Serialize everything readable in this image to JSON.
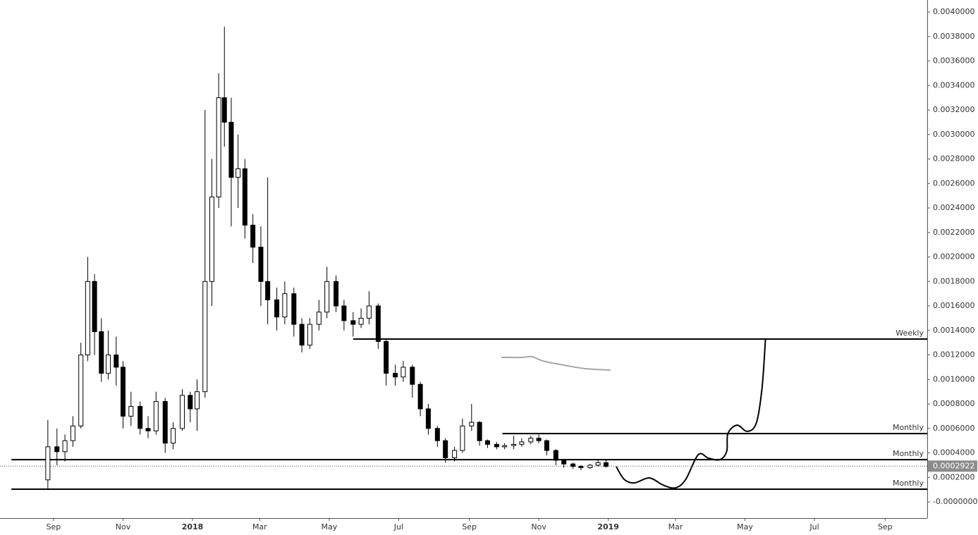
{
  "chart_data": {
    "type": "candlestick",
    "x": [
      42,
      50,
      57,
      64,
      71,
      77,
      83,
      89,
      95,
      102,
      108,
      115,
      123,
      130,
      137,
      145,
      152,
      160,
      167,
      173,
      180,
      186,
      192,
      197,
      203,
      209,
      215,
      222,
      229,
      235,
      243,
      250,
      258,
      265,
      272,
      280,
      287,
      295,
      302,
      310,
      317,
      324,
      332,
      339,
      347,
      354,
      362,
      369,
      376,
      384,
      391,
      399,
      406,
      414,
      421,
      428,
      436,
      443,
      451,
      458,
      466,
      473,
      480,
      488,
      495,
      503,
      510,
      518,
      525,
      532
    ],
    "open": [
      0.00018,
      0.00045,
      0.00041,
      0.0005,
      0.00062,
      0.0012,
      0.0018,
      0.00139,
      0.00105,
      0.0012,
      0.0011,
      0.0007,
      0.00078,
      0.0006,
      0.00058,
      0.00082,
      0.00048,
      0.0006,
      0.00087,
      0.00076,
      0.0009,
      0.0018,
      0.00249,
      0.0033,
      0.0031,
      0.00265,
      0.00272,
      0.00226,
      0.00208,
      0.0018,
      0.00165,
      0.00151,
      0.0017,
      0.00145,
      0.00128,
      0.00145,
      0.00155,
      0.0018,
      0.0016,
      0.00148,
      0.00145,
      0.0015,
      0.0016,
      0.00131,
      0.00105,
      0.00102,
      0.0011,
      0.00096,
      0.00076,
      0.0006,
      0.0005,
      0.00036,
      0.00042,
      0.00062,
      0.00065,
      0.0005,
      0.00047,
      0.00045,
      0.00046,
      0.00047,
      0.00049,
      0.00052,
      0.0005,
      0.00042,
      0.00034,
      0.00031,
      0.00029,
      0.00028,
      0.0003,
      0.00032
    ],
    "high": [
      0.00067,
      0.0006,
      0.00055,
      0.0007,
      0.0013,
      0.002,
      0.00186,
      0.0015,
      0.0014,
      0.00135,
      0.00115,
      0.0009,
      0.00082,
      0.0007,
      0.0009,
      0.00085,
      0.00065,
      0.00092,
      0.0009,
      0.001,
      0.0032,
      0.0028,
      0.0035,
      0.00388,
      0.0033,
      0.003,
      0.0028,
      0.00235,
      0.00225,
      0.00265,
      0.00175,
      0.0018,
      0.00175,
      0.0015,
      0.0015,
      0.00165,
      0.00192,
      0.00185,
      0.00165,
      0.00155,
      0.00158,
      0.00172,
      0.00162,
      0.00133,
      0.00112,
      0.00115,
      0.00112,
      0.00098,
      0.0008,
      0.00062,
      0.00052,
      0.00045,
      0.00068,
      0.0008,
      0.00066,
      0.00051,
      0.00049,
      0.00048,
      0.00054,
      0.00052,
      0.00054,
      0.00055,
      0.00051,
      0.00043,
      0.00035,
      0.00032,
      0.0003,
      0.00031,
      0.00035,
      0.00034
    ],
    "low": [
      0.0001,
      0.0003,
      0.00033,
      0.00045,
      0.0006,
      0.00115,
      0.0012,
      0.00098,
      0.001,
      0.00095,
      0.0006,
      0.00062,
      0.00055,
      0.00052,
      0.00055,
      0.0004,
      0.00043,
      0.00058,
      0.00065,
      0.00058,
      0.00085,
      0.0016,
      0.0024,
      0.0029,
      0.00225,
      0.0024,
      0.00215,
      0.00195,
      0.0016,
      0.00145,
      0.0014,
      0.00145,
      0.00135,
      0.00122,
      0.00125,
      0.0014,
      0.0015,
      0.00155,
      0.0014,
      0.00135,
      0.00142,
      0.00145,
      0.00125,
      0.00095,
      0.00095,
      0.00098,
      0.00085,
      0.0007,
      0.00055,
      0.00045,
      0.00032,
      0.00033,
      0.0004,
      0.00058,
      0.00046,
      0.00044,
      0.00043,
      0.00043,
      0.00043,
      0.00045,
      0.00047,
      0.00048,
      0.00038,
      0.0003,
      0.00028,
      0.00027,
      0.00026,
      0.00027,
      0.00029,
      0.00028
    ],
    "close": [
      0.00045,
      0.00041,
      0.0005,
      0.00062,
      0.0012,
      0.0018,
      0.00139,
      0.00105,
      0.0012,
      0.0011,
      0.0007,
      0.00078,
      0.0006,
      0.00058,
      0.00082,
      0.00048,
      0.0006,
      0.00087,
      0.00076,
      0.0009,
      0.0018,
      0.00249,
      0.0033,
      0.0031,
      0.00265,
      0.00272,
      0.00226,
      0.00208,
      0.0018,
      0.00165,
      0.00151,
      0.0017,
      0.00145,
      0.00128,
      0.00145,
      0.00155,
      0.0018,
      0.0016,
      0.00148,
      0.00145,
      0.0015,
      0.0016,
      0.00131,
      0.00105,
      0.00102,
      0.0011,
      0.00096,
      0.00076,
      0.0006,
      0.0005,
      0.00036,
      0.00042,
      0.00062,
      0.00065,
      0.0005,
      0.00047,
      0.00045,
      0.00046,
      0.00047,
      0.00049,
      0.00052,
      0.0005,
      0.00042,
      0.00034,
      0.00031,
      0.00029,
      0.00028,
      0.0003,
      0.00032,
      0.00029
    ],
    "up_color": "#ffffff",
    "down_color": "#000000",
    "line_color": "#000000",
    "xlim": [
      0,
      814
    ],
    "ylim": [
      -0.000132,
      0.004098
    ],
    "xticks": [
      {
        "value": 47,
        "label": "Sep"
      },
      {
        "value": 108,
        "label": "Nov"
      },
      {
        "value": 169,
        "label": "2018",
        "bold": true
      },
      {
        "value": 228,
        "label": "Mar"
      },
      {
        "value": 289,
        "label": "May"
      },
      {
        "value": 350,
        "label": "Jul"
      },
      {
        "value": 412,
        "label": "Sep"
      },
      {
        "value": 473,
        "label": "Nov"
      },
      {
        "value": 534,
        "label": "2019",
        "bold": true
      },
      {
        "value": 593,
        "label": "Mar"
      },
      {
        "value": 654,
        "label": "May"
      },
      {
        "value": 715,
        "label": "Jul"
      },
      {
        "value": 777,
        "label": "Sep"
      }
    ],
    "yticks": [
      {
        "value": 0.004,
        "label": "0.0040000"
      },
      {
        "value": 0.0038,
        "label": "0.0038000"
      },
      {
        "value": 0.0036,
        "label": "0.0036000"
      },
      {
        "value": 0.0034,
        "label": "0.0034000"
      },
      {
        "value": 0.0032,
        "label": "0.0032000"
      },
      {
        "value": 0.003,
        "label": "0.0030000"
      },
      {
        "value": 0.0028,
        "label": "0.0028000"
      },
      {
        "value": 0.0026,
        "label": "0.0026000"
      },
      {
        "value": 0.0024,
        "label": "0.0024000"
      },
      {
        "value": 0.0022,
        "label": "0.0022000"
      },
      {
        "value": 0.002,
        "label": "0.0020000"
      },
      {
        "value": 0.0018,
        "label": "0.0018000"
      },
      {
        "value": 0.0016,
        "label": "0.0016000"
      },
      {
        "value": 0.0014,
        "label": "0.0014000"
      },
      {
        "value": 0.0012,
        "label": "0.0012000"
      },
      {
        "value": 0.001,
        "label": "0.0010000"
      },
      {
        "value": 0.0008,
        "label": "0.0008000"
      },
      {
        "value": 0.0006,
        "label": "0.0006000"
      },
      {
        "value": 0.0004,
        "label": "0.0004000"
      },
      {
        "value": 0.0002,
        "label": "0.0002000"
      },
      {
        "value": 0,
        "label": "-0.0000000"
      }
    ],
    "levels": [
      {
        "label": "Weekly",
        "value": 0.00133,
        "start": 310
      },
      {
        "label": "Monthly",
        "value": 0.000558,
        "start": 441
      },
      {
        "label": "Monthly",
        "value": 0.000345,
        "start": 10
      },
      {
        "label": "Monthly",
        "value": 0.000104,
        "start": 10
      }
    ],
    "projection": {
      "color": "#000000",
      "x": [
        541,
        548,
        557,
        570,
        582,
        593,
        602,
        613,
        622,
        632,
        638,
        639,
        647,
        656,
        664,
        669,
        672
      ],
      "values": [
        0.000288,
        0.000184,
        0.000155,
        0.000196,
        0.000138,
        0.000115,
        0.000184,
        0.000386,
        0.000357,
        0.000345,
        0.000414,
        0.000558,
        0.000627,
        0.000576,
        0.000645,
        0.000932,
        0.00133
      ]
    },
    "average": {
      "color": "#a6a6a6",
      "x": [
        440,
        458,
        467,
        477,
        495,
        514,
        536
      ],
      "values": [
        0.00118,
        0.00118,
        0.001186,
        0.00115,
        0.001117,
        0.001088,
        0.001076
      ]
    },
    "last_price": 0.0002922
  }
}
